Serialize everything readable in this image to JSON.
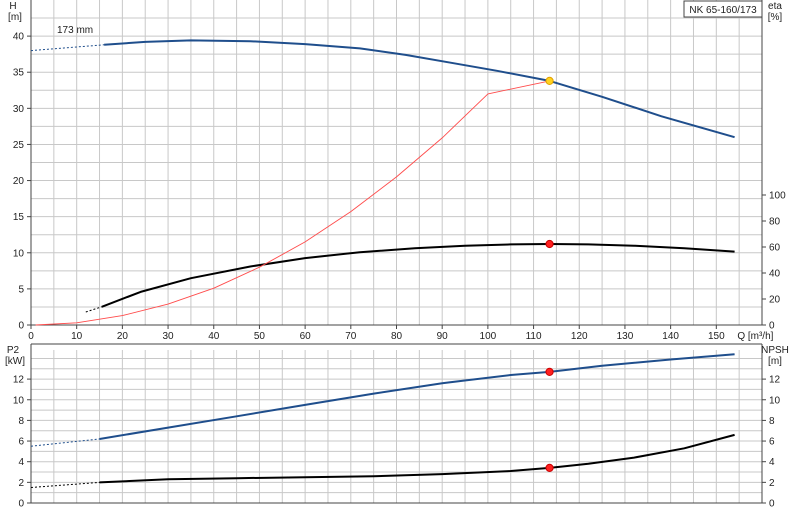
{
  "title": "NK 65-160/173",
  "chart_data": [
    {
      "type": "line",
      "panel": "upper",
      "xlabel": "Q [m³/h]",
      "xlim": [
        0,
        160
      ],
      "xticks": [
        0,
        10,
        20,
        30,
        40,
        50,
        60,
        70,
        80,
        90,
        100,
        110,
        120,
        130,
        140,
        150
      ],
      "left_axis": {
        "label_top": "H",
        "label_unit": "[m]",
        "ylim": [
          0,
          45
        ],
        "ticks": [
          0,
          5,
          10,
          15,
          20,
          25,
          30,
          35,
          40
        ]
      },
      "right_axis": {
        "label_top": "eta",
        "label_unit": "[%]",
        "ylim": [
          0,
          250
        ],
        "ticks": [
          0,
          20,
          40,
          60,
          80,
          100
        ]
      },
      "grid": true,
      "annotations": [
        {
          "text": "173 mm",
          "x": 3.5,
          "y": 40.4
        }
      ],
      "series": [
        {
          "id": "head",
          "axis": "left",
          "color": "#1f4e8c",
          "width": 2,
          "dashed": {
            "x": [
              0,
              16
            ],
            "y": [
              38.0,
              38.8
            ]
          },
          "x": [
            16,
            25,
            35,
            48,
            60,
            72,
            82,
            92,
            102,
            113.5,
            125,
            138,
            154
          ],
          "y": [
            38.8,
            39.2,
            39.4,
            39.3,
            38.9,
            38.3,
            37.4,
            36.3,
            35.2,
            33.8,
            31.6,
            28.9,
            26.0
          ]
        },
        {
          "id": "efficiency",
          "axis": "right",
          "color": "#000000",
          "width": 2,
          "dashed": {
            "x": [
              12,
              15.5
            ],
            "y": [
              10,
              14
            ]
          },
          "x": [
            15.5,
            24,
            35,
            48,
            60,
            72,
            84,
            95,
            105,
            113.5,
            122,
            132,
            143,
            154
          ],
          "y": [
            14,
            25.5,
            36,
            45,
            51.5,
            56,
            59,
            61,
            62,
            62.3,
            62,
            61,
            59,
            56.5
          ]
        },
        {
          "id": "system-curve",
          "axis": "left",
          "color": "#ff4b4b",
          "width": 0.9,
          "x": [
            1,
            10,
            20,
            30,
            40,
            50,
            60,
            70,
            80,
            90,
            100,
            113.5
          ],
          "y": [
            0,
            0.3,
            1.3,
            2.9,
            5.1,
            8.0,
            11.5,
            15.7,
            20.5,
            25.9,
            32.0,
            33.8
          ]
        }
      ],
      "markers": [
        {
          "x": 113.5,
          "y": 33.8,
          "axis": "left",
          "fill": "#ffd21f",
          "stroke": "#e0a000"
        },
        {
          "x": 113.5,
          "y": 62.3,
          "axis": "right",
          "fill": "#ff2020",
          "stroke": "#cc0000"
        }
      ]
    },
    {
      "type": "line",
      "panel": "lower",
      "xlim": [
        0,
        160
      ],
      "left_axis": {
        "label_top": "P2",
        "label_unit": "[kW]",
        "ylim": [
          0,
          15.4
        ],
        "ticks": [
          0,
          2,
          4,
          6,
          8,
          10,
          12
        ]
      },
      "right_axis": {
        "label_top": "NPSH",
        "label_unit": "[m]",
        "ylim": [
          0,
          15.4
        ],
        "ticks": [
          0,
          2,
          4,
          6,
          8,
          10,
          12
        ]
      },
      "grid": true,
      "series": [
        {
          "id": "power",
          "axis": "left",
          "color": "#1f4e8c",
          "width": 2,
          "dashed": {
            "x": [
              0,
              15
            ],
            "y": [
              5.5,
              6.2
            ]
          },
          "x": [
            15,
            30,
            45,
            60,
            75,
            90,
            105,
            113.5,
            125,
            140,
            154
          ],
          "y": [
            6.2,
            7.3,
            8.4,
            9.5,
            10.6,
            11.6,
            12.4,
            12.7,
            13.3,
            13.9,
            14.4
          ]
        },
        {
          "id": "npsh",
          "axis": "right",
          "color": "#000000",
          "width": 2,
          "dashed": {
            "x": [
              0,
              15
            ],
            "y": [
              1.5,
              2.0
            ]
          },
          "x": [
            15,
            30,
            45,
            60,
            75,
            90,
            105,
            113.5,
            122,
            132,
            143,
            154
          ],
          "y": [
            2.0,
            2.3,
            2.4,
            2.5,
            2.6,
            2.8,
            3.1,
            3.4,
            3.8,
            4.4,
            5.3,
            6.6
          ]
        }
      ],
      "markers": [
        {
          "x": 113.5,
          "y": 12.7,
          "axis": "left",
          "fill": "#ff2020",
          "stroke": "#cc0000"
        },
        {
          "x": 113.5,
          "y": 3.4,
          "axis": "right",
          "fill": "#ff2020",
          "stroke": "#cc0000"
        }
      ]
    }
  ]
}
